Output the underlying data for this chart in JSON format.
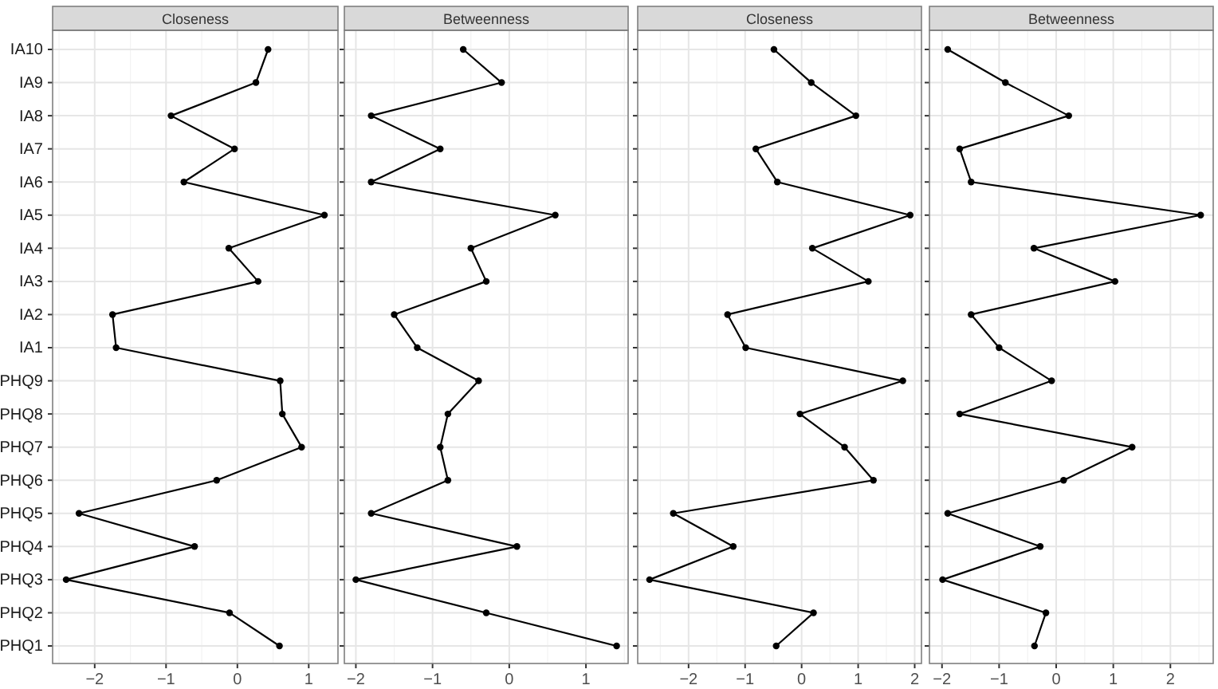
{
  "chart_data": [
    {
      "type": "line",
      "orientation": "horizontal",
      "title": "Closeness",
      "categories": [
        "IA10",
        "IA9",
        "IA8",
        "IA7",
        "IA6",
        "IA5",
        "IA4",
        "IA3",
        "IA2",
        "IA1",
        "PHQ9",
        "PHQ8",
        "PHQ7",
        "PHQ6",
        "PHQ5",
        "PHQ4",
        "PHQ3",
        "PHQ2",
        "PHQ1"
      ],
      "values": [
        0.43,
        0.26,
        -0.93,
        -0.04,
        -0.75,
        1.22,
        -0.12,
        0.29,
        -1.75,
        -1.7,
        0.6,
        0.63,
        0.9,
        -0.29,
        -2.22,
        -0.6,
        -2.4,
        -0.11,
        0.59
      ],
      "color": "#000000",
      "marker": "circle",
      "xlim": [
        -2.59,
        1.41
      ],
      "xticks": [
        -2,
        -1,
        0,
        1
      ],
      "grid": true
    },
    {
      "type": "line",
      "orientation": "horizontal",
      "title": "Betweenness",
      "categories": [
        null,
        null,
        null,
        null,
        null,
        null,
        null,
        null,
        null,
        null,
        null,
        null,
        null,
        null,
        null,
        null,
        null,
        null,
        null
      ],
      "values": [
        -0.6,
        -0.1,
        -1.8,
        -0.9,
        -1.8,
        0.6,
        -0.5,
        -0.3,
        -1.5,
        -1.2,
        -0.4,
        -0.8,
        -0.9,
        -0.8,
        -1.8,
        0.1,
        -2.0,
        -0.3,
        1.4
      ],
      "color": "#000000",
      "marker": "circle",
      "xlim": [
        -2.15,
        1.55
      ],
      "xticks": [
        -2,
        -1,
        0,
        1
      ],
      "grid": true,
      "tick_labels": "x"
    },
    {
      "type": "line",
      "orientation": "horizontal",
      "title": "Closeness",
      "categories": [
        null,
        null,
        null,
        null,
        null,
        null,
        null,
        null,
        null,
        null,
        null,
        null,
        null,
        null,
        null,
        null,
        null,
        null,
        null
      ],
      "values": [
        -0.49,
        0.17,
        0.96,
        -0.81,
        -0.43,
        1.92,
        0.19,
        1.18,
        -1.31,
        -0.99,
        1.79,
        -0.03,
        0.76,
        1.27,
        -2.27,
        -1.21,
        -2.69,
        0.21,
        -0.45
      ],
      "color": "#000000",
      "marker": "circle",
      "xlim": [
        -2.9,
        2.12
      ],
      "xticks": [
        -2,
        -1,
        0,
        1,
        2
      ],
      "grid": true,
      "tick_labels": "x"
    },
    {
      "type": "line",
      "orientation": "horizontal",
      "title": "Betweenness",
      "categories": [
        null,
        null,
        null,
        null,
        null,
        null,
        null,
        null,
        null,
        null,
        null,
        null,
        null,
        null,
        null,
        null,
        null,
        null,
        null
      ],
      "values": [
        -1.9,
        -0.89,
        0.22,
        -1.69,
        -1.49,
        2.53,
        -0.39,
        1.03,
        -1.49,
        -1.0,
        -0.08,
        -1.69,
        1.33,
        0.13,
        -1.9,
        -0.28,
        -1.99,
        -0.18,
        -0.38
      ],
      "color": "#000000",
      "marker": "circle",
      "xlim": [
        -2.22,
        2.75
      ],
      "xticks": [
        -2,
        -1,
        0,
        1,
        2
      ],
      "grid": true,
      "tick_labels": "x"
    }
  ]
}
